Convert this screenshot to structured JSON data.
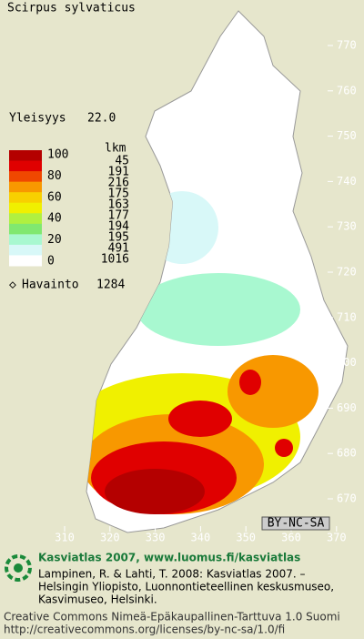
{
  "title": "Scirpus sylvaticus",
  "frequency": {
    "label": "Yleisyys",
    "value": "22.0"
  },
  "legend": {
    "count_header": "lkm",
    "levels": [
      100,
      80,
      60,
      40,
      20,
      0
    ],
    "colors": [
      "#b40000",
      "#e00000",
      "#f04800",
      "#f89800",
      "#f8d000",
      "#f0f000",
      "#b0f040",
      "#80e870",
      "#a8f8d0",
      "#d8f8f8",
      "#ffffff"
    ],
    "counts": [
      45,
      191,
      216,
      175,
      163,
      177,
      194,
      195,
      491,
      1016
    ]
  },
  "observations": {
    "label": "Havainto",
    "value": 1284
  },
  "map": {
    "x_ticks": [
      310,
      320,
      330,
      340,
      350,
      360,
      370
    ],
    "y_ticks": [
      770,
      760,
      750,
      740,
      730,
      720,
      710,
      700,
      690,
      680,
      670
    ]
  },
  "license_badge": "BY-NC-SA",
  "footer": {
    "heading": "Kasviatlas 2007, www.luomus.fi/kasviatlas",
    "citation": [
      "Lampinen, R. & Lahti, T. 2008: Kasviatlas 2007. –",
      "Helsingin Yliopisto, Luonnontieteellinen keskusmuseo,",
      "Kasvimuseo, Helsinki."
    ],
    "license": [
      "Creative Commons Nimeä-Epäkaupallinen-Tarttuva 1.0 Suomi",
      "http://creativecommons.org/licenses/by-nc-sa/1.0/fi"
    ]
  }
}
